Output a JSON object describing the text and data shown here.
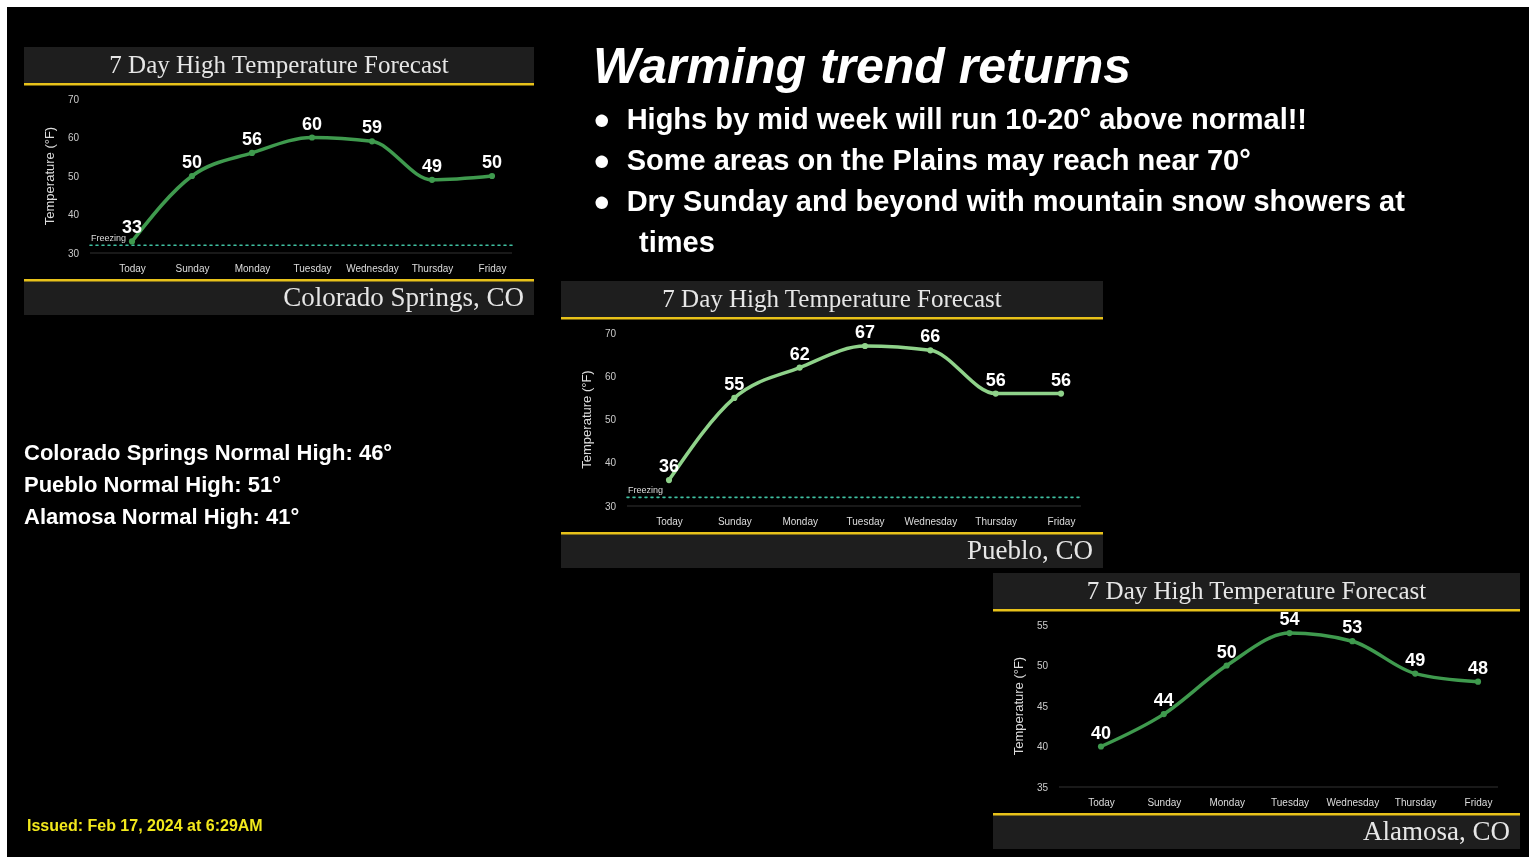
{
  "chart_data": [
    {
      "type": "line",
      "title": "7 Day High Temperature Forecast",
      "subtitle": "Colorado Springs, CO",
      "ylabel": "Temperature (°F)",
      "categories": [
        "Today",
        "Sunday",
        "Monday",
        "Tuesday",
        "Wednesday",
        "Thursday",
        "Friday"
      ],
      "series": [
        {
          "color": "#3f9a4e",
          "values": [
            33,
            50,
            56,
            60,
            59,
            49,
            50
          ]
        }
      ],
      "ylim": [
        30,
        70
      ],
      "yticks": [
        30,
        40,
        50,
        60,
        70
      ],
      "data_labels": true,
      "marker": "circle",
      "grid": false,
      "ref_lines": [
        {
          "axis": "y",
          "value": 32,
          "label": "Freezing",
          "color": "#3fbfa0",
          "line_style": "dotted"
        }
      ]
    },
    {
      "type": "other",
      "title": "Warming trend returns",
      "annotations": [
        "●  Highs by mid week will run 10-20° above normal!!",
        "●  Some areas on the Plains may reach near 70°",
        "●  Dry Sunday and beyond with mountain snow showers at  times"
      ]
    },
    {
      "type": "other",
      "annotations": [
        "Colorado Springs Normal High:  46°",
        "Pueblo Normal High:  51°",
        "Alamosa Normal High:  41°"
      ]
    },
    {
      "type": "line",
      "title": "7 Day High Temperature Forecast",
      "subtitle": "Pueblo, CO",
      "ylabel": "Temperature (°F)",
      "categories": [
        "Today",
        "Sunday",
        "Monday",
        "Tuesday",
        "Wednesday",
        "Thursday",
        "Friday"
      ],
      "series": [
        {
          "color": "#8fd28a",
          "values": [
            36,
            55,
            62,
            67,
            66,
            56,
            56
          ]
        }
      ],
      "ylim": [
        30,
        70
      ],
      "yticks": [
        30,
        40,
        50,
        60,
        70
      ],
      "data_labels": true,
      "marker": "circle",
      "grid": false,
      "ref_lines": [
        {
          "axis": "y",
          "value": 32,
          "label": "Freezing",
          "color": "#3fbfa0",
          "line_style": "dotted"
        }
      ]
    },
    {
      "type": "line",
      "title": "7 Day High Temperature Forecast",
      "subtitle": "Alamosa, CO",
      "ylabel": "Temperature (°F)",
      "categories": [
        "Today",
        "Sunday",
        "Monday",
        "Tuesday",
        "Wednesday",
        "Thursday",
        "Friday"
      ],
      "series": [
        {
          "color": "#3f9a4e",
          "values": [
            40,
            44,
            50,
            54,
            53,
            49,
            48
          ]
        }
      ],
      "ylim": [
        35,
        55
      ],
      "yticks": [
        35,
        40,
        45,
        50,
        55
      ],
      "data_labels": true,
      "marker": "circle",
      "grid": false
    },
    {
      "type": "other",
      "annotations": [
        "Issued: Feb 17, 2024 at 6:29AM"
      ]
    }
  ]
}
